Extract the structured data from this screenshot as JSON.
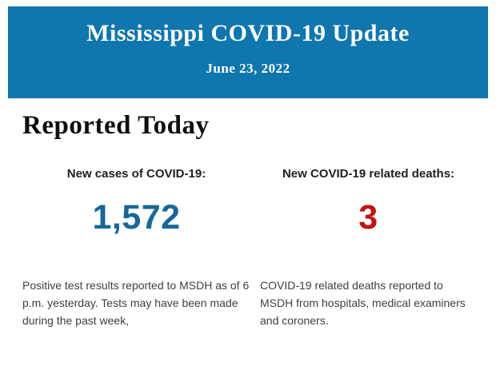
{
  "header": {
    "title": "Mississippi COVID-19 Update",
    "date": "June 23, 2022",
    "background_color": "#0f76ae",
    "text_color": "#ffffff"
  },
  "main": {
    "heading": "Reported Today",
    "stats": [
      {
        "label": "New cases of COVID-19:",
        "value": "1,572",
        "value_color": "#16689c",
        "description": "Positive test results reported to MSDH as of 6 p.m. yesterday. Tests may have been made during the past week,"
      },
      {
        "label": "New COVID-19 related deaths:",
        "value": "3",
        "value_color": "#c51111",
        "description": "COVID-19 related deaths reported to MSDH from hospitals, medical examiners and coroners."
      }
    ]
  }
}
